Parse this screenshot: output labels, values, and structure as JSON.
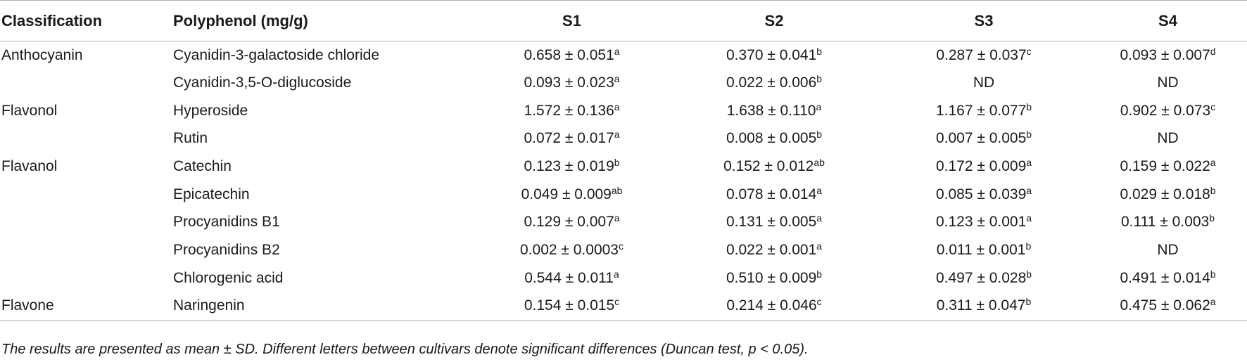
{
  "table": {
    "headers": [
      "Classification",
      "Polyphenol (mg/g)",
      "S1",
      "S2",
      "S3",
      "S4"
    ],
    "rows": [
      {
        "classification": "Anthocyanin",
        "polyphenol": "Cyanidin-3-galactoside chloride",
        "cells": [
          {
            "v": "0.658 ± 0.051",
            "s": "a"
          },
          {
            "v": "0.370 ± 0.041",
            "s": "b"
          },
          {
            "v": "0.287 ± 0.037",
            "s": "c"
          },
          {
            "v": "0.093 ± 0.007",
            "s": "d"
          }
        ]
      },
      {
        "classification": "",
        "polyphenol": "Cyanidin-3,5-O-diglucoside",
        "cells": [
          {
            "v": "0.093 ± 0.023",
            "s": "a"
          },
          {
            "v": "0.022 ± 0.006",
            "s": "b"
          },
          {
            "v": "ND",
            "s": ""
          },
          {
            "v": "ND",
            "s": ""
          }
        ]
      },
      {
        "classification": "Flavonol",
        "polyphenol": "Hyperoside",
        "cells": [
          {
            "v": "1.572 ± 0.136",
            "s": "a"
          },
          {
            "v": "1.638 ± 0.110",
            "s": "a"
          },
          {
            "v": "1.167 ± 0.077",
            "s": "b"
          },
          {
            "v": "0.902 ± 0.073",
            "s": "c"
          }
        ]
      },
      {
        "classification": "",
        "polyphenol": "Rutin",
        "cells": [
          {
            "v": "0.072 ± 0.017",
            "s": "a"
          },
          {
            "v": "0.008 ± 0.005",
            "s": "b"
          },
          {
            "v": "0.007 ± 0.005",
            "s": "b"
          },
          {
            "v": "ND",
            "s": ""
          }
        ]
      },
      {
        "classification": "Flavanol",
        "polyphenol": "Catechin",
        "cells": [
          {
            "v": "0.123 ± 0.019",
            "s": "b"
          },
          {
            "v": "0.152 ± 0.012",
            "s": "ab"
          },
          {
            "v": "0.172 ± 0.009",
            "s": "a"
          },
          {
            "v": "0.159 ± 0.022",
            "s": "a"
          }
        ]
      },
      {
        "classification": "",
        "polyphenol": "Epicatechin",
        "cells": [
          {
            "v": "0.049 ± 0.009",
            "s": "ab"
          },
          {
            "v": "0.078 ± 0.014",
            "s": "a"
          },
          {
            "v": "0.085 ± 0.039",
            "s": "a"
          },
          {
            "v": "0.029 ± 0.018",
            "s": "b"
          }
        ]
      },
      {
        "classification": "",
        "polyphenol": "Procyanidins B1",
        "cells": [
          {
            "v": "0.129 ± 0.007",
            "s": "a"
          },
          {
            "v": "0.131 ± 0.005",
            "s": "a"
          },
          {
            "v": "0.123 ± 0.001",
            "s": "a"
          },
          {
            "v": "0.111 ± 0.003",
            "s": "b"
          }
        ]
      },
      {
        "classification": "",
        "polyphenol": "Procyanidins B2",
        "cells": [
          {
            "v": "0.002 ± 0.0003",
            "s": "c"
          },
          {
            "v": "0.022 ± 0.001",
            "s": "a"
          },
          {
            "v": "0.011 ± 0.001",
            "s": "b"
          },
          {
            "v": "ND",
            "s": ""
          }
        ]
      },
      {
        "classification": "",
        "polyphenol": "Chlorogenic acid",
        "cells": [
          {
            "v": "0.544 ± 0.011",
            "s": "a"
          },
          {
            "v": "0.510 ± 0.009",
            "s": "b"
          },
          {
            "v": "0.497 ± 0.028",
            "s": "b"
          },
          {
            "v": "0.491 ± 0.014",
            "s": "b"
          }
        ]
      },
      {
        "classification": "Flavone",
        "polyphenol": "Naringenin",
        "cells": [
          {
            "v": "0.154 ± 0.015",
            "s": "c"
          },
          {
            "v": "0.214 ± 0.046",
            "s": "c"
          },
          {
            "v": "0.311 ± 0.047",
            "s": "b"
          },
          {
            "v": "0.475 ± 0.062",
            "s": "a"
          }
        ]
      }
    ]
  },
  "footnote": "The results are presented as mean ± SD. Different letters between cultivars denote significant differences (Duncan test, p < 0.05)."
}
